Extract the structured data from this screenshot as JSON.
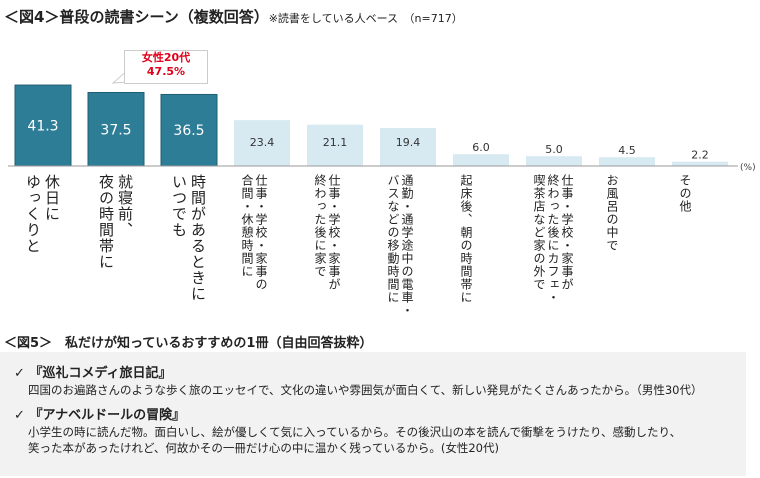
{
  "figure4": {
    "title": "＜図4＞普段の読書シーン（複数回答）",
    "note": "※読書をしている人ベース　（n=717）",
    "callout": {
      "line1": "女性20代",
      "line2": "47.5%"
    }
  },
  "chart_data": {
    "type": "bar",
    "unit": "(%)",
    "ylim": [
      0,
      50
    ],
    "grid": false,
    "categories": [
      "休日に\nゆっくりと",
      "就寝前、\n夜の時間帯に",
      "時間があるときに\nいつでも",
      "仕事・学校・家事の\n合間・休憩時間に",
      "仕事・学校・家事が\n終わった後に家で",
      "通勤・通学途中の電車・\nバスなどの移動時間に",
      "起床後、朝の時間帯に",
      "仕事・学校・家事が\n終わった後にカフェ・\n喫茶店など家の外で",
      "お風呂の中で",
      "その他"
    ],
    "values": [
      41.3,
      37.5,
      36.5,
      23.4,
      21.1,
      19.4,
      6.0,
      5.0,
      4.5,
      2.2
    ],
    "value_labels": [
      "41.3",
      "37.5",
      "36.5",
      "23.4",
      "21.1",
      "19.4",
      "6.0",
      "5.0",
      "4.5",
      "2.2"
    ],
    "colors": {
      "top3": "#2e7d96",
      "other": "#d7eaf2",
      "top3_border": "#1f5f73"
    }
  },
  "figure5": {
    "title": "＜図5＞　私だけが知っているおすすめの1冊（自由回答抜粋）",
    "items": [
      {
        "check": "✓",
        "title": "『巡礼コメディ旅日記』",
        "lines": [
          "四国のお遍路さんのような歩く旅のエッセイで、文化の違いや雰囲気が面白くて、新しい発見がたくさんあったから。（男性30代）"
        ]
      },
      {
        "check": "✓",
        "title": "『アナベルドールの冒険』",
        "lines": [
          "小学生の時に読んだ物。面白いし、絵が優しくて気に入っているから。その後沢山の本を読んで衝撃をうけたり、感動したり、",
          "笑った本があったけれど、何故かその一冊だけ心の中に温かく残っているから。(女性20代)"
        ]
      }
    ]
  }
}
